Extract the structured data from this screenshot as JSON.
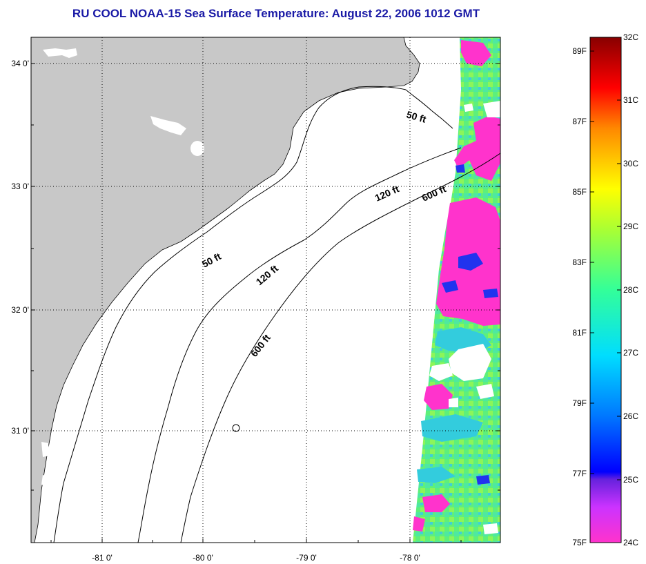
{
  "title": "RU COOL  NOAA-15  Sea Surface Temperature:  August 22, 2006 1012 GMT",
  "map": {
    "lat_labels": [
      "34 0'",
      "33 0'",
      "32 0'",
      "31 0'"
    ],
    "lon_labels": [
      "-81 0'",
      "-80 0'",
      "-79 0'",
      "-78 0'"
    ],
    "contours": [
      {
        "label": "50 ft"
      },
      {
        "label": "120 ft"
      },
      {
        "label": "600 ft"
      },
      {
        "label": "50 ft"
      },
      {
        "label": "120 ft"
      },
      {
        "label": "600 ft"
      }
    ]
  },
  "colorbar": {
    "fahrenheit": [
      "89F",
      "87F",
      "85F",
      "83F",
      "81F",
      "79F",
      "77F",
      "75F"
    ],
    "celsius": [
      "32C",
      "31C",
      "30C",
      "29C",
      "28C",
      "27C",
      "26C",
      "25C",
      "24C"
    ]
  },
  "colors": {
    "title": "#1a1aa6",
    "land": "#c8c8c8",
    "sst_pink": "#ff33cc",
    "sst_green": "#66ff66",
    "sst_cyan": "#33ccdd",
    "sst_blue": "#2233ee"
  }
}
